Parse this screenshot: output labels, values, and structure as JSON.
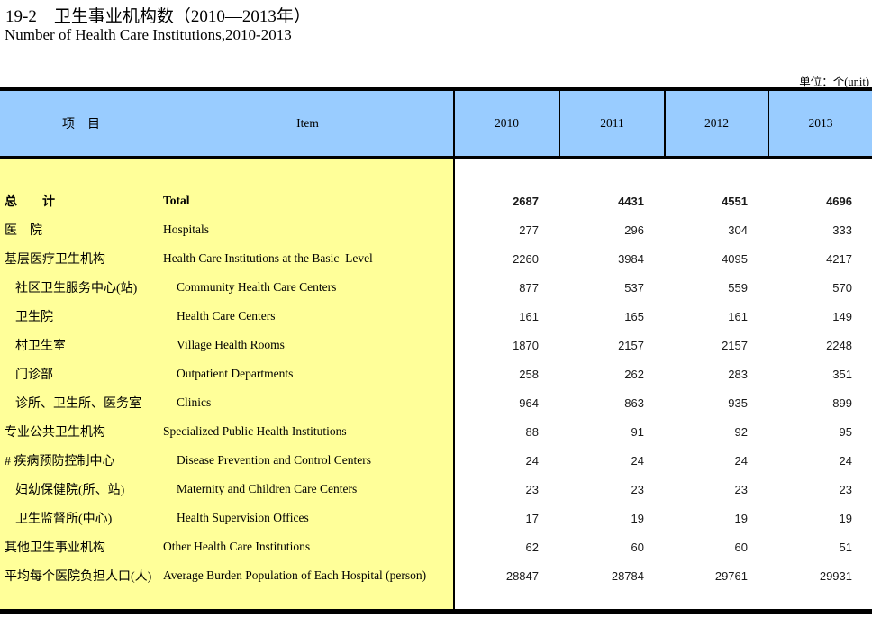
{
  "page": {
    "title_cn": "19-2　卫生事业机构数（2010—2013年）",
    "title_en": "Number of Health Care Institutions,2010-2013",
    "unit_label": "单位：个(unit)"
  },
  "colors": {
    "header_bg": "#99CCFF",
    "label_panel_bg": "#FFFF99",
    "border": "#000000"
  },
  "table": {
    "header": {
      "item_cn": "项　目",
      "item_en": "Item",
      "years": [
        "2010",
        "2011",
        "2012",
        "2013"
      ]
    },
    "rows": [
      {
        "cn": "总　　计",
        "en": "Total",
        "values": [
          "2687",
          "4431",
          "4551",
          "4696"
        ]
      },
      {
        "cn": "医　院",
        "en": "Hospitals",
        "values": [
          "277",
          "296",
          "304",
          "333"
        ]
      },
      {
        "cn": "基层医疗卫生机构",
        "en": "Health Care Institutions at the Basic  Level",
        "values": [
          "2260",
          "3984",
          "4095",
          "4217"
        ]
      },
      {
        "cn": "社区卫生服务中心(站)",
        "en": "Community Health Care Centers",
        "values": [
          "877",
          "537",
          "559",
          "570"
        ]
      },
      {
        "cn": "卫生院",
        "en": "Health Care Centers",
        "values": [
          "161",
          "165",
          "161",
          "149"
        ]
      },
      {
        "cn": "村卫生室",
        "en": "Village Health Rooms",
        "values": [
          "1870",
          "2157",
          "2157",
          "2248"
        ]
      },
      {
        "cn": "门诊部",
        "en": "Outpatient Departments",
        "values": [
          "258",
          "262",
          "283",
          "351"
        ]
      },
      {
        "cn": "诊所、卫生所、医务室",
        "en": "Clinics",
        "values": [
          "964",
          "863",
          "935",
          "899"
        ]
      },
      {
        "cn": "专业公共卫生机构",
        "en": "Specialized Public Health Institutions",
        "values": [
          "88",
          "91",
          "92",
          "95"
        ]
      },
      {
        "cn": "# 疾病预防控制中心",
        "en": "Disease Prevention and Control Centers",
        "values": [
          "24",
          "24",
          "24",
          "24"
        ]
      },
      {
        "cn": "妇幼保健院(所、站)",
        "en": "Maternity and Children Care Centers",
        "values": [
          "23",
          "23",
          "23",
          "23"
        ]
      },
      {
        "cn": "卫生监督所(中心)",
        "en": "Health Supervision Offices",
        "values": [
          "17",
          "19",
          "19",
          "19"
        ]
      },
      {
        "cn": "其他卫生事业机构",
        "en": "Other Health Care Institutions",
        "values": [
          "62",
          "60",
          "60",
          "51"
        ]
      },
      {
        "cn": "平均每个医院负担人口(人)",
        "en": "Average Burden Population of Each Hospital (person)",
        "values": [
          "28847",
          "28784",
          "29761",
          "29931"
        ]
      }
    ]
  }
}
